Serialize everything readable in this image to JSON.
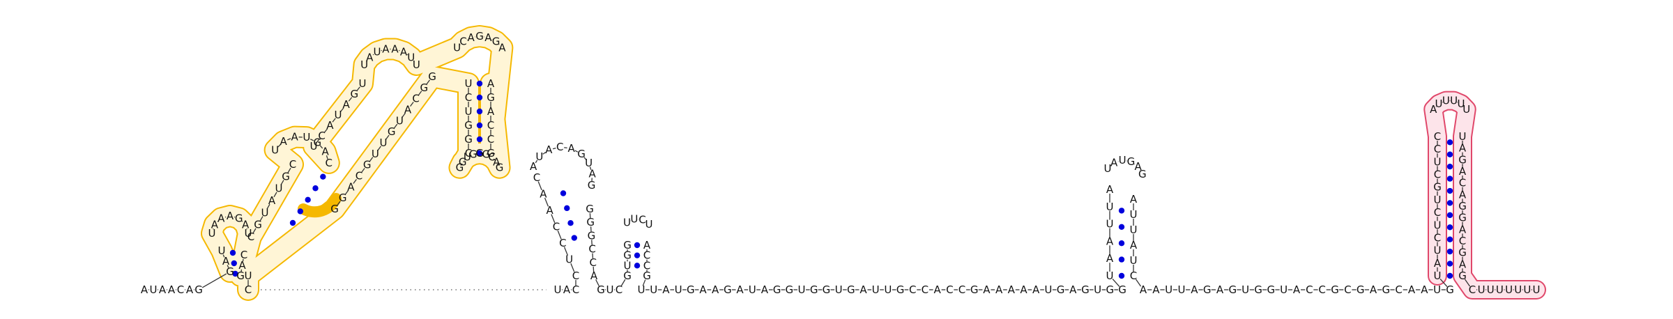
{
  "leader": "AUAACAG",
  "leader_tail": "UC",
  "linker_after_hairpin1": "UAC",
  "linker_between_hairpins": "GUC",
  "hairpin2": {
    "left_stem": "CUCCAAC",
    "loop": "AUACAGUAG",
    "right_stem": "GGGCCA"
  },
  "hairpin3": {
    "left_stem": "GUGG",
    "loop": "UUCU",
    "right_stem": "ACCG"
  },
  "spacer": "UUAUGAAGAUAGGUGGUGAUUGCCACCGAAAAAUGAGUGG",
  "hairpin4": {
    "left_stem": "UAAUUA",
    "loop": "UAUGAG",
    "right_stem": "AUUAUC"
  },
  "spacer2": "AAUUAGAGUGGUACCGCGAGCAAUG",
  "terminator": {
    "left_stem": "UAUCUCUGCUCC",
    "loop": "AUUUUU",
    "right_stem": "UAGACAGGACGAG",
    "tail": "CUUUUUUU"
  },
  "multiloop_left_arm": "CGUAUGCUCAUAGU",
  "multiloop_top_loop": "UAUAAAUU",
  "multiloop_hairpin": {
    "stem_left": "UCUGGC",
    "loop": "GGUGGGCAG",
    "stem_right": "GCCAGA"
  },
  "multiloop_right_arm": "GGCAUGUUGCAGG",
  "colors": {
    "pair_dot": "#0000dd",
    "domain_outline": "#f5b800",
    "domain_fill": "#fff5d6",
    "highlight": "#f5b800",
    "terminator_outline": "#e0476a",
    "terminator_fill": "#fde4ea",
    "dotted_connector": "#555555",
    "text": "#111111"
  }
}
